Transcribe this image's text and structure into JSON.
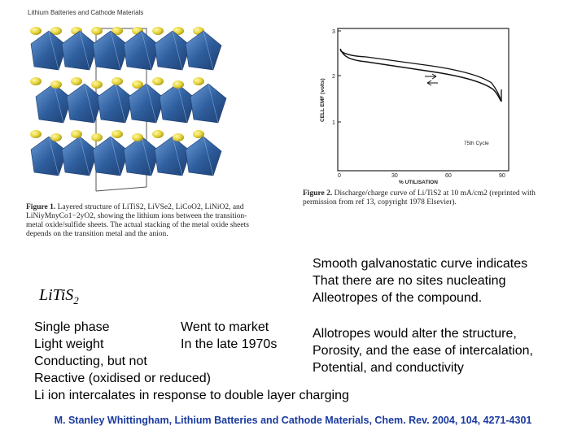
{
  "header": "Lithium Batteries and Cathode Materials",
  "figure1": {
    "caption_label": "Figure 1.",
    "caption_text": "Layered structure of LiTiS2, LiVSe2, LiCoO2, LiNiO2, and LiNiyMnyCo1−2yO2, showing the lithium ions between the transition-metal oxide/sulfide sheets. The actual stacking of the metal oxide sheets depends on the transition metal and the anion."
  },
  "figure2": {
    "y_axis_label": "CELL EMF (volts)",
    "x_axis_label": "% UTILISATION",
    "y_ticks": [
      "1",
      "2",
      "3"
    ],
    "x_ticks": [
      "0",
      "30",
      "60",
      "90"
    ],
    "annotation": "75th Cycle",
    "caption_label": "Figure 2.",
    "caption_text": "Discharge/charge curve of Li/TiS2 at 10 mA/cm2 (reprinted with permission from ref 13, copyright 1978 Elsevier)."
  },
  "formula": {
    "base": "LiTiS",
    "sub": "2"
  },
  "right_top": [
    "Smooth galvanostatic curve indicates",
    "That there are no sites nucleating",
    "Alleotropes of the compound."
  ],
  "left_col": [
    "Single phase",
    "Light weight",
    "Conducting, but not",
    "Reactive (oxidised or reduced)",
    "Li ion intercalates in response to double layer charging"
  ],
  "mid_col": [
    "Went to market",
    "In the late 1970s"
  ],
  "right_bottom": [
    "Allotropes would alter the structure,",
    "Porosity, and the ease of intercalation,",
    "Potential, and conductivity"
  ],
  "citation": "M. Stanley Whittingham, Lithium Batteries and Cathode Materials, Chem. Rev. 2004, 104, 4271-4301",
  "colors": {
    "octahedra": "#2f5f9e",
    "ions": "#e6d43a",
    "citation": "#1a3a9e"
  }
}
